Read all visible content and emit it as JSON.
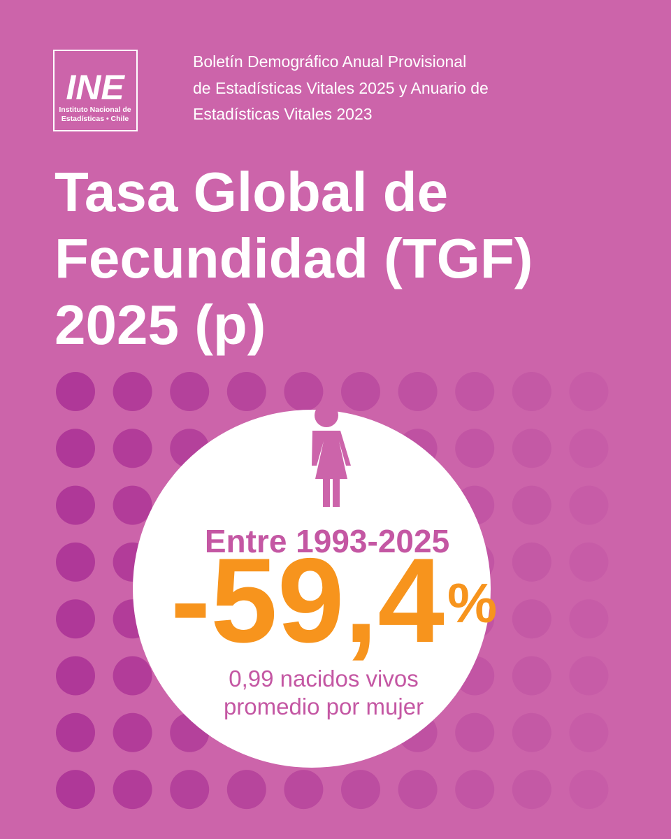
{
  "logo": {
    "mark": "INE",
    "lines": [
      "Instituto Nacional de",
      "Estadísticas • Chile"
    ]
  },
  "header": [
    "Boletín Demográfico Anual Provisional",
    "de Estadísticas Vitales 2025 y Anuario de",
    "Estadísticas Vitales 2023"
  ],
  "title": [
    "Tasa Global de",
    "Fecundidad (TGF)",
    "2025 (p)"
  ],
  "stat": {
    "period": "Entre 1993-2025",
    "value": "-59,4",
    "unit": "%",
    "note": [
      "0,99 nacidos vivos",
      "promedio por mujer"
    ]
  }
}
